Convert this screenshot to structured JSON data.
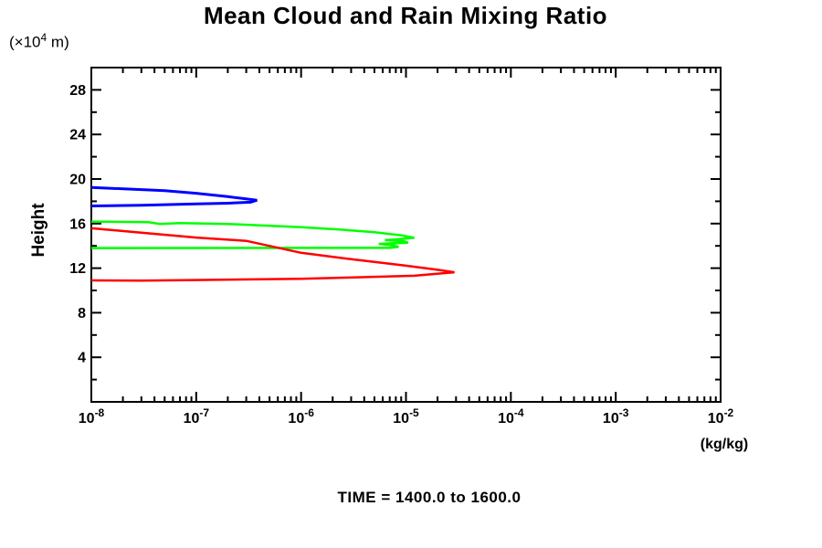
{
  "page": {
    "background": "#ffffff"
  },
  "chart_data": {
    "type": "line",
    "title": "Mean Cloud and Rain Mixing Ratio",
    "ylabel": "Height",
    "y_axis_unit": {
      "prefix": "(×10",
      "exponent": "4",
      "suffix": " m)"
    },
    "x_axis_unit": "(kg/kg)",
    "annotation": "TIME = 1400.0 to 1600.0",
    "x_scale": "log",
    "xlim": [
      1e-08,
      0.01
    ],
    "x_tick_base": "10",
    "x_tick_exponents": [
      -8,
      -7,
      -6,
      -5,
      -4,
      -3,
      -2
    ],
    "ylim": [
      0,
      30
    ],
    "y_major_ticks": [
      4,
      8,
      12,
      16,
      20,
      24,
      28
    ],
    "y_minor_ticks": [
      2,
      6,
      10,
      14,
      18,
      22,
      26
    ],
    "grid": false,
    "legend": "none",
    "series": [
      {
        "name": "blue",
        "color": "#0000ff",
        "stroke_width": 3,
        "points": [
          [
            1e-08,
            19.25
          ],
          [
            5e-08,
            18.95
          ],
          [
            1e-07,
            18.72
          ],
          [
            2e-07,
            18.42
          ],
          [
            3e-07,
            18.22
          ],
          [
            3.8e-07,
            18.1
          ],
          [
            3.3e-07,
            17.92
          ],
          [
            2e-07,
            17.83
          ],
          [
            1e-07,
            17.76
          ],
          [
            3e-08,
            17.65
          ],
          [
            1e-08,
            17.58
          ]
        ]
      },
      {
        "name": "green",
        "color": "#00ff00",
        "stroke_width": 2.5,
        "points": [
          [
            1e-08,
            16.18
          ],
          [
            3.5e-08,
            16.12
          ],
          [
            4.5e-08,
            15.97
          ],
          [
            7e-08,
            16.05
          ],
          [
            2e-07,
            15.97
          ],
          [
            1e-06,
            15.67
          ],
          [
            2.5e-06,
            15.45
          ],
          [
            5e-06,
            15.22
          ],
          [
            9e-06,
            14.95
          ],
          [
            1.2e-05,
            14.72
          ],
          [
            8e-06,
            14.58
          ],
          [
            6.3e-06,
            14.52
          ],
          [
            9.5e-06,
            14.42
          ],
          [
            1.05e-05,
            14.28
          ],
          [
            5.5e-06,
            14.18
          ],
          [
            7.5e-06,
            14.05
          ],
          [
            8.5e-06,
            13.92
          ],
          [
            7e-06,
            13.82
          ],
          [
            1e-08,
            13.8
          ]
        ]
      },
      {
        "name": "red",
        "color": "#ff0000",
        "stroke_width": 2.5,
        "points": [
          [
            1e-08,
            15.58
          ],
          [
            1e-07,
            14.75
          ],
          [
            3e-07,
            14.45
          ],
          [
            1e-06,
            13.38
          ],
          [
            3e-06,
            12.8
          ],
          [
            1e-05,
            12.22
          ],
          [
            2e-05,
            11.85
          ],
          [
            2.9e-05,
            11.63
          ],
          [
            1.2e-05,
            11.32
          ],
          [
            3.5e-06,
            11.18
          ],
          [
            1e-06,
            11.05
          ],
          [
            1.5e-07,
            10.95
          ],
          [
            3e-08,
            10.88
          ],
          [
            1e-08,
            10.9
          ]
        ]
      }
    ]
  }
}
